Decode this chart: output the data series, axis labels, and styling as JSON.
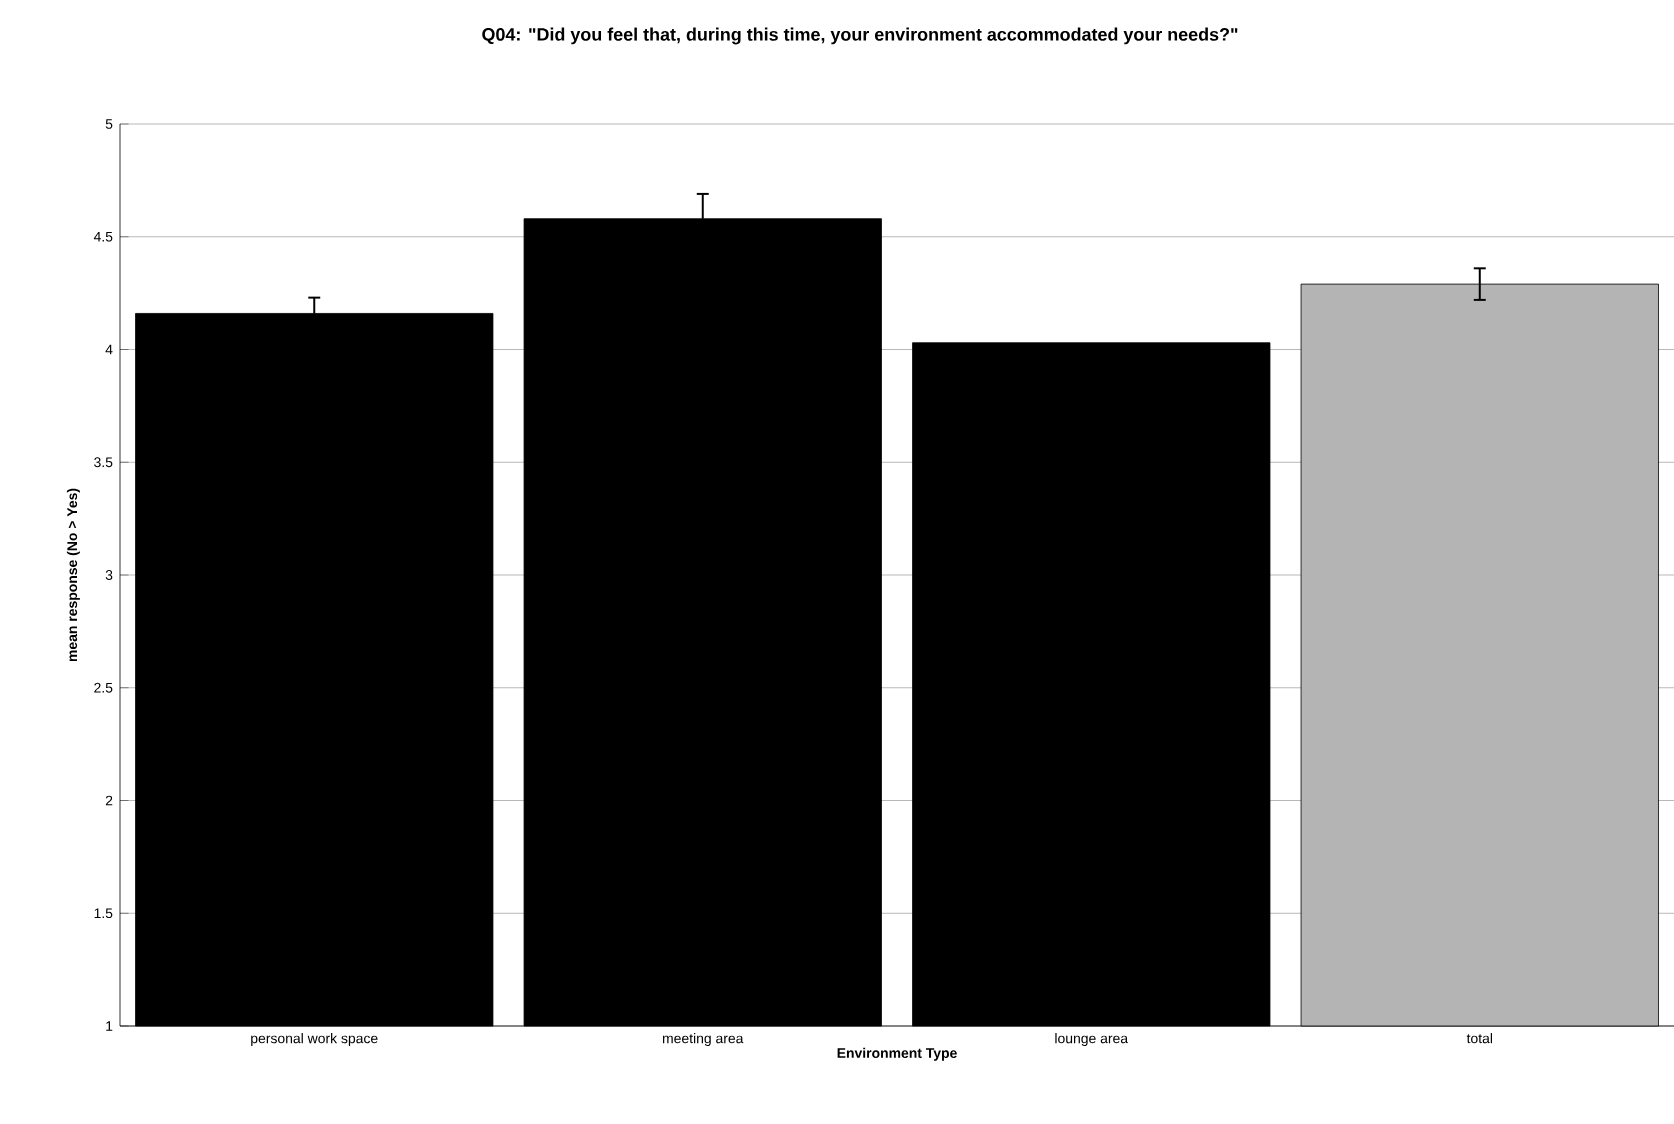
{
  "chart_data": {
    "type": "bar",
    "title": "Q04: \"Did you feel that, during this time, your environment accommodated your needs?\"",
    "xlabel": "Environment Type",
    "ylabel": "mean response (No > Yes)",
    "categories": [
      "personal work space",
      "meeting area",
      "lounge area",
      "total"
    ],
    "values": [
      4.16,
      4.58,
      4.03,
      4.29
    ],
    "errors": [
      0.07,
      0.11,
      null,
      0.07
    ],
    "colors": [
      "#000000",
      "#000000",
      "#000000",
      "#b4b4b4"
    ],
    "ylim": [
      1,
      5
    ],
    "yticks": [
      1,
      1.5,
      2,
      2.5,
      3,
      3.5,
      4,
      4.5,
      5
    ],
    "grid": "y"
  }
}
